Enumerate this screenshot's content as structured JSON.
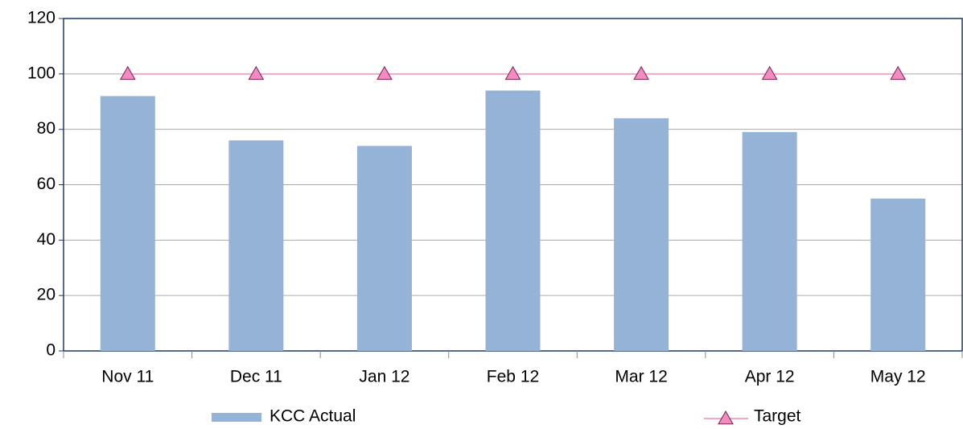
{
  "chart_data": {
    "type": "bar",
    "categories": [
      "Nov 11",
      "Dec 11",
      "Jan 12",
      "Feb 12",
      "Mar 12",
      "Apr 12",
      "May 12"
    ],
    "series": [
      {
        "name": "KCC Actual",
        "type": "bar",
        "color": "#95b3d7",
        "values": [
          92,
          76,
          74,
          94,
          84,
          79,
          55
        ]
      },
      {
        "name": "Target",
        "type": "line",
        "marker": "triangle",
        "color": "#f4a6c8",
        "values": [
          100,
          100,
          100,
          100,
          100,
          100,
          100
        ]
      }
    ],
    "ylim": [
      0,
      120
    ],
    "yticks": [
      0,
      20,
      40,
      60,
      80,
      100,
      120
    ],
    "grid": true,
    "legend": "bottom"
  }
}
